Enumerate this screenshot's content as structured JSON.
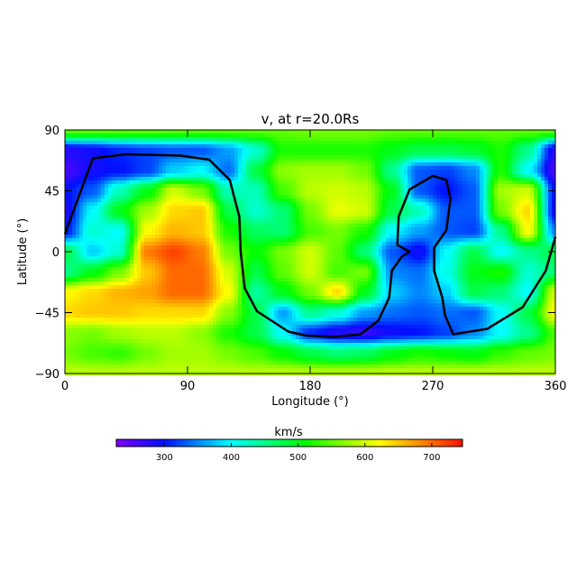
{
  "chart_data": {
    "type": "heatmap",
    "title": "v, at r=20.0Rs",
    "title_subscript": "r",
    "xlabel": "Longitude (°)",
    "ylabel": "Latitude (°)",
    "xlim": [
      0,
      360
    ],
    "ylim": [
      -90,
      90
    ],
    "xticks": [
      0,
      90,
      180,
      270,
      360
    ],
    "yticks": [
      -90,
      -45,
      0,
      45,
      90
    ],
    "grid_lon": [
      0,
      20,
      40,
      60,
      80,
      100,
      120,
      140,
      160,
      180,
      200,
      220,
      240,
      260,
      280,
      300,
      320,
      340,
      360
    ],
    "grid_lat": [
      90,
      75,
      60,
      45,
      30,
      15,
      0,
      -15,
      -30,
      -45,
      -60,
      -75,
      -90
    ],
    "values": [
      [
        550,
        550,
        550,
        550,
        550,
        550,
        550,
        550,
        550,
        560,
        560,
        560,
        550,
        550,
        550,
        550,
        550,
        550,
        550
      ],
      [
        280,
        290,
        310,
        320,
        330,
        330,
        360,
        420,
        520,
        520,
        520,
        520,
        500,
        480,
        480,
        490,
        520,
        450,
        280
      ],
      [
        260,
        290,
        300,
        320,
        380,
        400,
        340,
        480,
        570,
        580,
        580,
        560,
        450,
        330,
        320,
        350,
        520,
        400,
        260
      ],
      [
        300,
        330,
        430,
        500,
        600,
        560,
        430,
        430,
        540,
        590,
        600,
        590,
        500,
        330,
        300,
        330,
        580,
        600,
        300
      ],
      [
        280,
        400,
        500,
        580,
        640,
        650,
        480,
        420,
        460,
        560,
        610,
        600,
        480,
        430,
        330,
        330,
        560,
        640,
        290
      ],
      [
        300,
        420,
        400,
        620,
        660,
        650,
        520,
        470,
        460,
        540,
        560,
        520,
        400,
        360,
        330,
        320,
        450,
        620,
        350
      ],
      [
        480,
        380,
        420,
        690,
        720,
        690,
        560,
        510,
        560,
        600,
        550,
        460,
        330,
        290,
        400,
        480,
        400,
        450,
        480
      ],
      [
        450,
        500,
        560,
        650,
        700,
        700,
        600,
        480,
        550,
        600,
        540,
        560,
        350,
        340,
        410,
        500,
        520,
        420,
        460
      ],
      [
        620,
        640,
        660,
        670,
        700,
        700,
        620,
        440,
        500,
        560,
        640,
        500,
        380,
        350,
        380,
        480,
        460,
        400,
        600
      ],
      [
        640,
        650,
        650,
        640,
        640,
        640,
        570,
        480,
        360,
        450,
        420,
        360,
        340,
        330,
        340,
        330,
        400,
        480,
        620
      ],
      [
        570,
        560,
        580,
        590,
        590,
        570,
        520,
        480,
        400,
        310,
        280,
        270,
        290,
        300,
        320,
        350,
        400,
        450,
        540
      ],
      [
        560,
        540,
        530,
        560,
        580,
        580,
        560,
        540,
        510,
        480,
        460,
        470,
        500,
        520,
        510,
        500,
        530,
        550,
        560
      ],
      [
        590,
        590,
        590,
        590,
        590,
        590,
        590,
        590,
        590,
        590,
        590,
        590,
        590,
        590,
        590,
        590,
        590,
        590,
        590
      ]
    ],
    "neutral_line": [
      [
        0,
        13
      ],
      [
        20.5,
        69
      ],
      [
        45,
        72
      ],
      [
        85,
        71
      ],
      [
        106,
        68
      ],
      [
        121,
        53
      ],
      [
        128,
        26
      ],
      [
        129,
        0
      ],
      [
        132,
        -27
      ],
      [
        141,
        -44
      ],
      [
        164,
        -59
      ],
      [
        177,
        -62
      ],
      [
        197,
        -63
      ],
      [
        217,
        -61
      ],
      [
        230,
        -51
      ],
      [
        238,
        -34
      ],
      [
        240,
        -14
      ],
      [
        247,
        -4
      ],
      [
        253,
        0
      ],
      [
        244,
        5
      ],
      [
        245,
        26
      ],
      [
        253,
        46
      ],
      [
        270,
        56
      ],
      [
        280,
        53
      ],
      [
        283,
        39
      ],
      [
        280,
        16
      ],
      [
        271,
        3
      ],
      [
        271,
        -14
      ],
      [
        277,
        -34
      ],
      [
        279,
        -47
      ],
      [
        285,
        -61
      ],
      [
        310,
        -57
      ],
      [
        336,
        -41
      ],
      [
        353,
        -14
      ],
      [
        360,
        11
      ]
    ],
    "colorbar": {
      "label": "km/s",
      "range": [
        228,
        746
      ],
      "ticks": [
        300,
        400,
        500,
        600,
        700
      ],
      "colorscale": [
        [
          228,
          "#8000ff"
        ],
        [
          300,
          "#0010ff"
        ],
        [
          400,
          "#00ffff"
        ],
        [
          510,
          "#00ff00"
        ],
        [
          620,
          "#ffff00"
        ],
        [
          680,
          "#ff9000"
        ],
        [
          746,
          "#ff1000"
        ]
      ]
    },
    "grid": false
  }
}
